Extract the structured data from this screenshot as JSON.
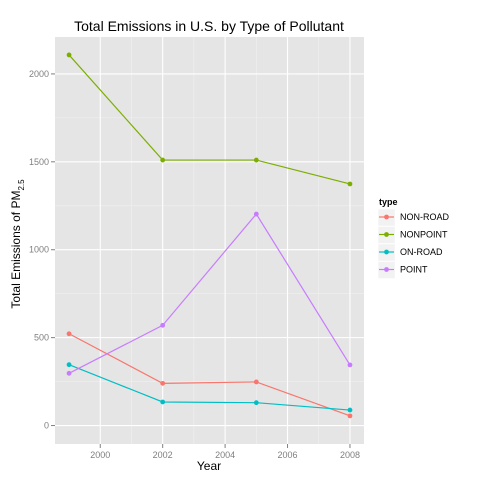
{
  "chart_data": {
    "type": "line",
    "title": "Total Emissions in U.S. by Type of Pollutant",
    "xlabel": "Year",
    "ylabel": "Total Emissions of PM",
    "ylabel_subscript": "2.5",
    "x": [
      1999,
      2002,
      2005,
      2008
    ],
    "xlim": [
      1998.55,
      2008.45
    ],
    "ylim": [
      -105,
      2210
    ],
    "x_ticks": [
      2000,
      2002,
      2004,
      2006,
      2008
    ],
    "y_ticks": [
      0,
      500,
      1000,
      1500,
      2000
    ],
    "grid": true,
    "legend": {
      "title": "type",
      "position": "right"
    },
    "series": [
      {
        "name": "NON-ROAD",
        "color": "#f8766d",
        "values": [
          522,
          240,
          248,
          55
        ]
      },
      {
        "name": "NONPOINT",
        "color": "#7cae00",
        "values": [
          2108,
          1510,
          1510,
          1374
        ]
      },
      {
        "name": "ON-ROAD",
        "color": "#00bfc4",
        "values": [
          346,
          134,
          130,
          88
        ]
      },
      {
        "name": "POINT",
        "color": "#c77cff",
        "values": [
          297,
          570,
          1203,
          345
        ]
      }
    ]
  }
}
